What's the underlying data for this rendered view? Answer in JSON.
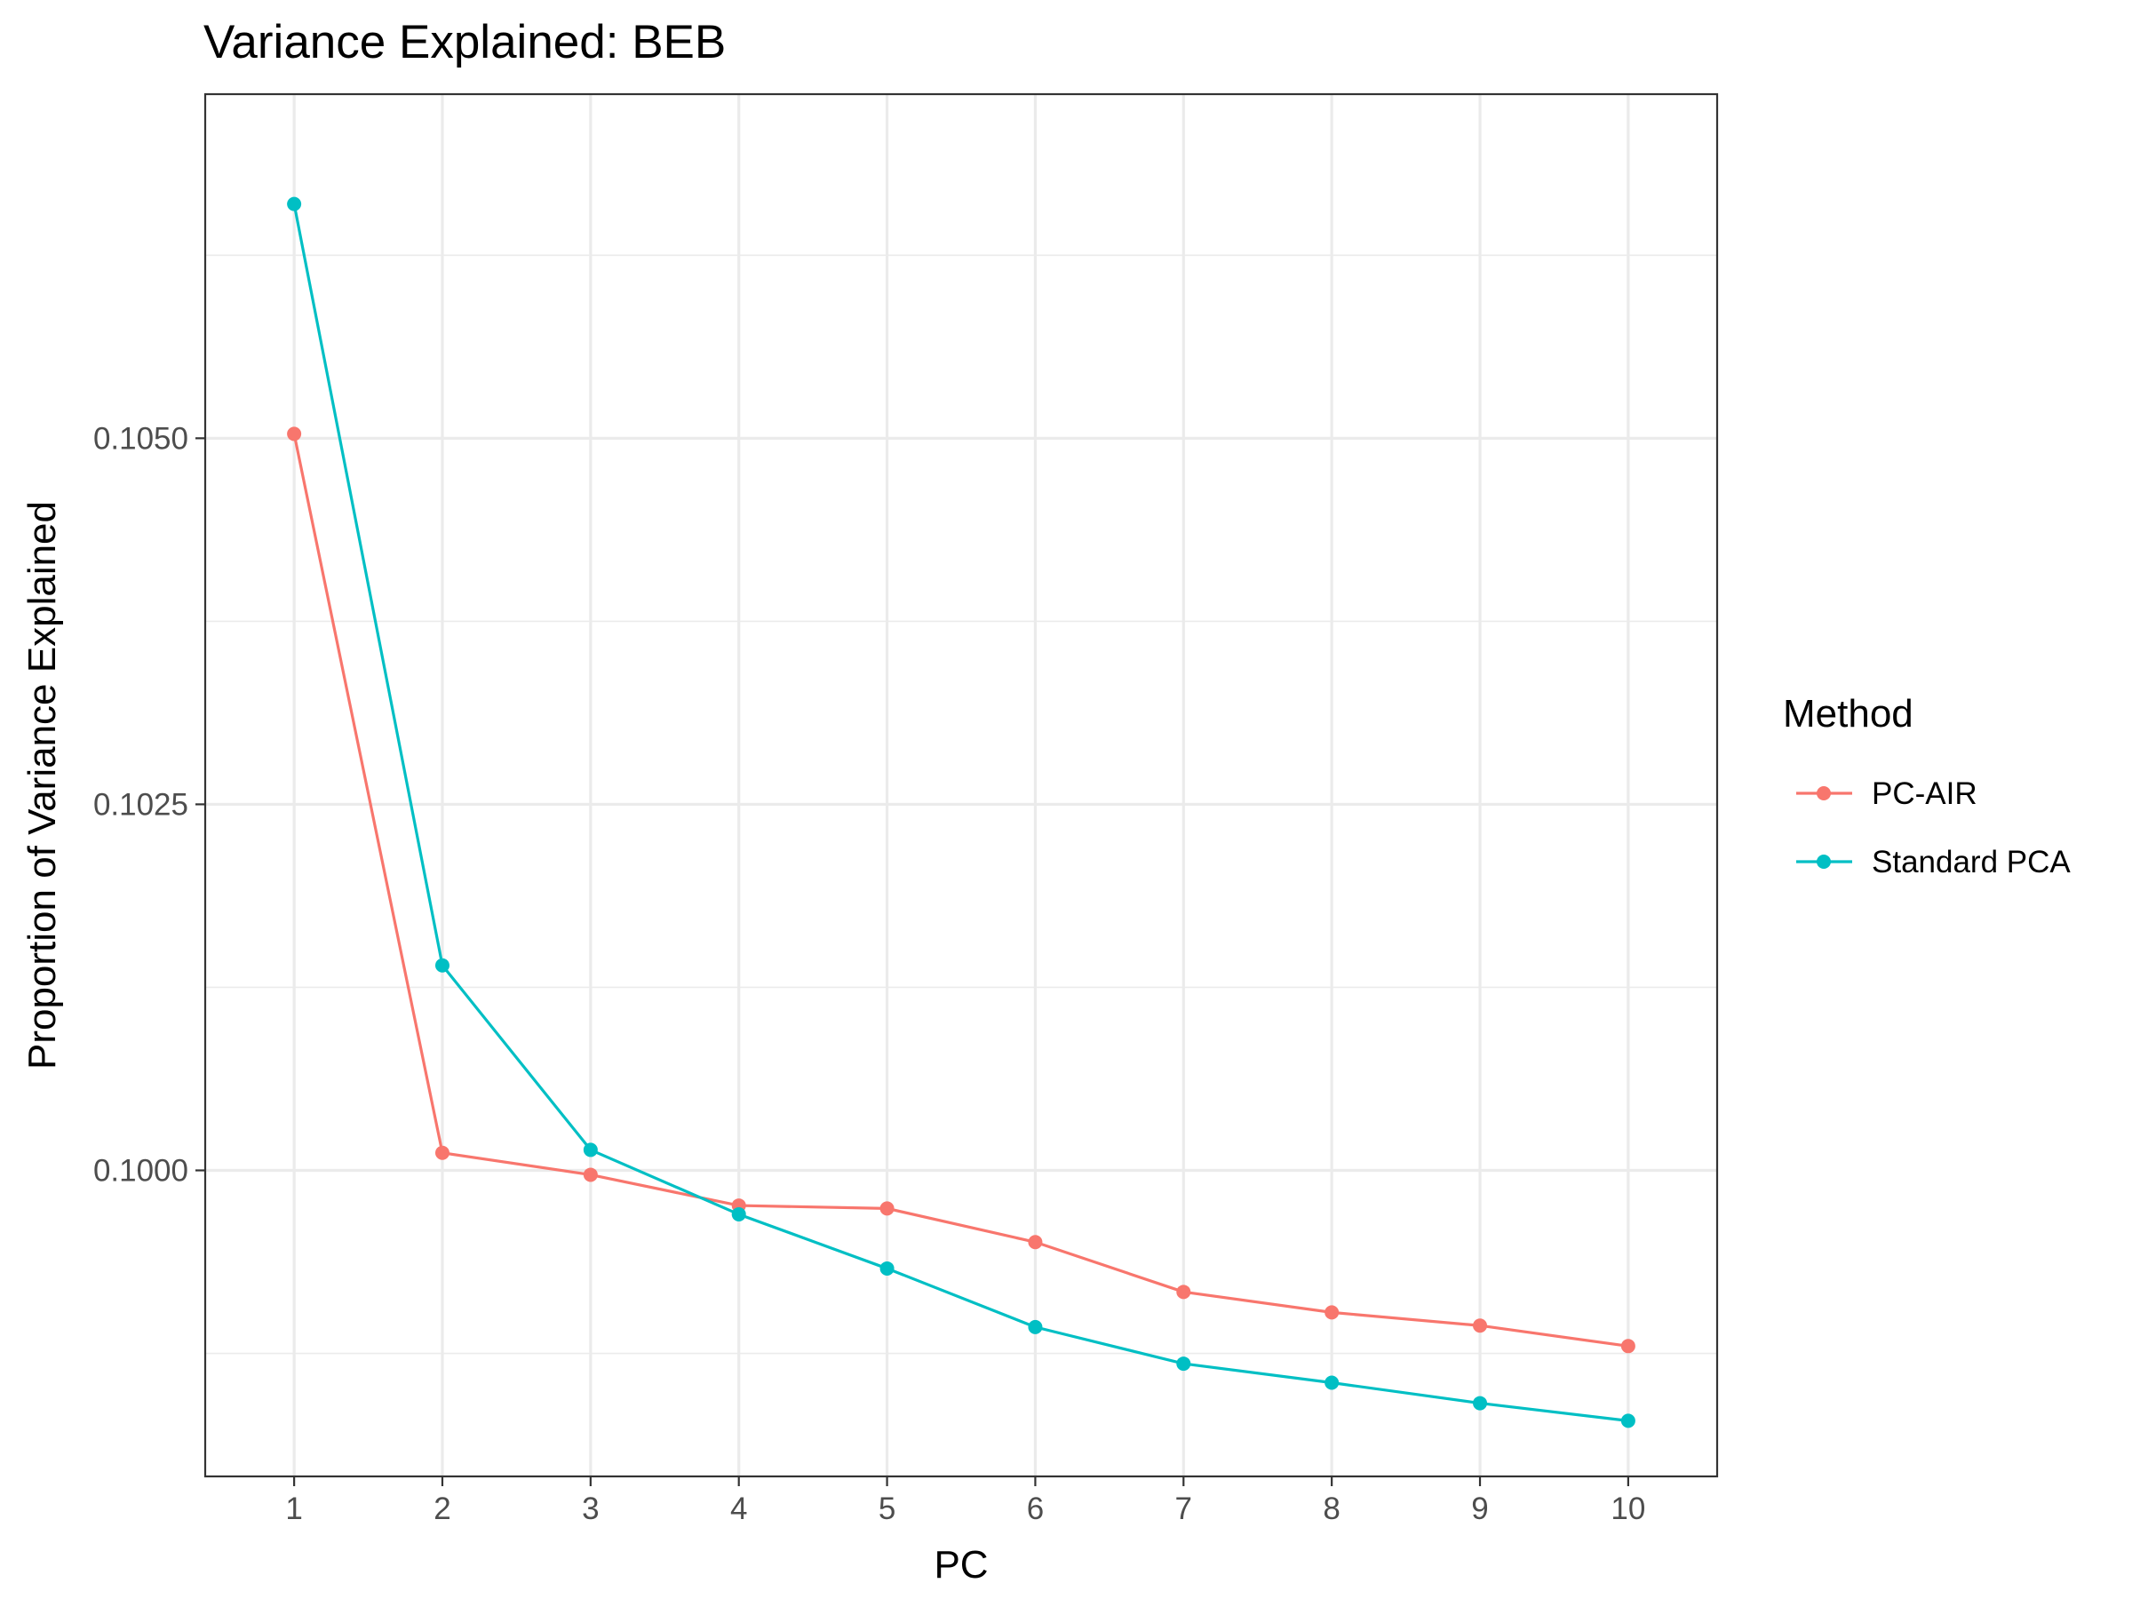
{
  "chart_data": {
    "type": "line",
    "title": "Variance Explained: BEB",
    "xlabel": "PC",
    "ylabel": "Proportion of Variance Explained",
    "x": [
      1,
      2,
      3,
      4,
      5,
      6,
      7,
      8,
      9,
      10
    ],
    "x_ticks": [
      "1",
      "2",
      "3",
      "4",
      "5",
      "6",
      "7",
      "8",
      "9",
      "10"
    ],
    "xlim": [
      0.4,
      10.6
    ],
    "ylim": [
      0.09791,
      0.10735
    ],
    "y_ticks": [
      0.1,
      0.1025,
      0.105
    ],
    "y_tick_labels": [
      "0.1000",
      "0.1025",
      "0.1050"
    ],
    "y_minor_ticks": [
      0.09875,
      0.10125,
      0.10375,
      0.10625
    ],
    "grid": true,
    "legend": {
      "title": "Method",
      "position": "right"
    },
    "series": [
      {
        "name": "PC-AIR",
        "color": "#F8766D",
        "values": [
          0.10503,
          0.10012,
          0.09997,
          0.09976,
          0.09974,
          0.09951,
          0.09917,
          0.09903,
          0.09894,
          0.0988
        ]
      },
      {
        "name": "Standard PCA",
        "color": "#00BFC4",
        "values": [
          0.1066,
          0.1014,
          0.10014,
          0.0997,
          0.09933,
          0.09893,
          0.09868,
          0.09855,
          0.09841,
          0.09829
        ]
      }
    ]
  }
}
